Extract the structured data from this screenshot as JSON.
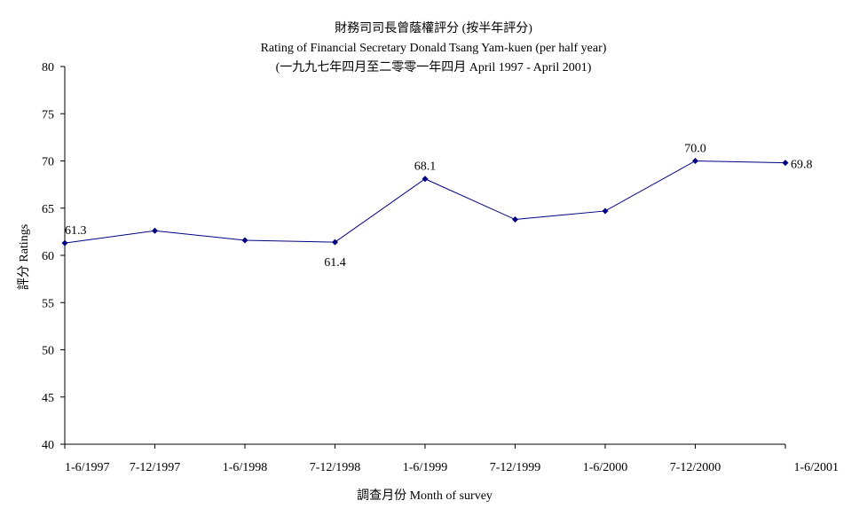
{
  "chart_data": {
    "type": "line",
    "title": "財務司司長曾蔭權評分 (按半年評分)",
    "subtitle": "Rating of Financial Secretary Donald Tsang Yam-kuen  (per half year)",
    "subtitle2": "(一九九七年四月至二零零一年四月 April 1997 - April 2001)",
    "xlabel": "調查月份 Month of survey",
    "ylabel": "評分 Ratings",
    "categories": [
      "1-6/1997",
      "7-12/1997",
      "1-6/1998",
      "7-12/1998",
      "1-6/1999",
      "7-12/1999",
      "1-6/2000",
      "7-12/2000",
      "1-6/2001"
    ],
    "series": [
      {
        "values": [
          61.3,
          62.6,
          61.6,
          61.4,
          68.1,
          63.8,
          64.7,
          70.0,
          69.8
        ]
      }
    ],
    "data_labels": [
      {
        "index": 0,
        "text": "61.3",
        "position": "above"
      },
      {
        "index": 3,
        "text": "61.4",
        "position": "below"
      },
      {
        "index": 4,
        "text": "68.1",
        "position": "above"
      },
      {
        "index": 7,
        "text": "70.0",
        "position": "above"
      },
      {
        "index": 8,
        "text": "69.8",
        "position": "right"
      }
    ],
    "ylim": [
      40,
      80
    ],
    "yticks": [
      40,
      45,
      50,
      55,
      60,
      65,
      70,
      75,
      80
    ],
    "grid": false,
    "line_color": "#000080",
    "marker_color": "#000080"
  }
}
